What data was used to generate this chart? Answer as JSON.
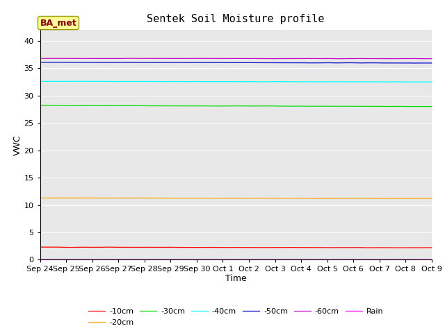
{
  "title": "Sentek Soil Moisture profile",
  "xlabel": "Time",
  "ylabel": "VWC",
  "annotation": "BA_met",
  "ylim": [
    0,
    42
  ],
  "yticks": [
    0,
    5,
    10,
    15,
    20,
    25,
    30,
    35,
    40
  ],
  "x_labels": [
    "Sep 24",
    "Sep 25",
    "Sep 26",
    "Sep 27",
    "Sep 28",
    "Sep 29",
    "Sep 30",
    "Oct 1",
    "Oct 2",
    "Oct 3",
    "Oct 4",
    "Oct 5",
    "Oct 6",
    "Oct 7",
    "Oct 8",
    "Oct 9"
  ],
  "bg_color": "#e8e8e8",
  "fig_bg": "#ffffff",
  "series": [
    {
      "label": "-10cm",
      "color": "#ff0000",
      "base": 2.3,
      "noise_scale": 0.04,
      "drift": -0.1
    },
    {
      "label": "-20cm",
      "color": "#ffa500",
      "base": 11.3,
      "noise_scale": 0.04,
      "drift": -0.1
    },
    {
      "label": "-30cm",
      "color": "#00dd00",
      "base": 28.2,
      "noise_scale": 0.04,
      "drift": -0.2
    },
    {
      "label": "-40cm",
      "color": "#00ffff",
      "base": 32.6,
      "noise_scale": 0.04,
      "drift": -0.1
    },
    {
      "label": "-50cm",
      "color": "#0000cc",
      "base": 36.1,
      "noise_scale": 0.03,
      "drift": -0.15
    },
    {
      "label": "-60cm",
      "color": "#cc00cc",
      "base": 36.8,
      "noise_scale": 0.03,
      "drift": -0.05
    },
    {
      "label": "Rain",
      "color": "#ff00ff",
      "base": 0.02,
      "noise_scale": 0.005,
      "drift": 0.0
    }
  ],
  "n_points": 500,
  "linewidth": 0.9,
  "title_fontsize": 11,
  "axis_label_fontsize": 9,
  "tick_fontsize": 8,
  "legend_fontsize": 8
}
